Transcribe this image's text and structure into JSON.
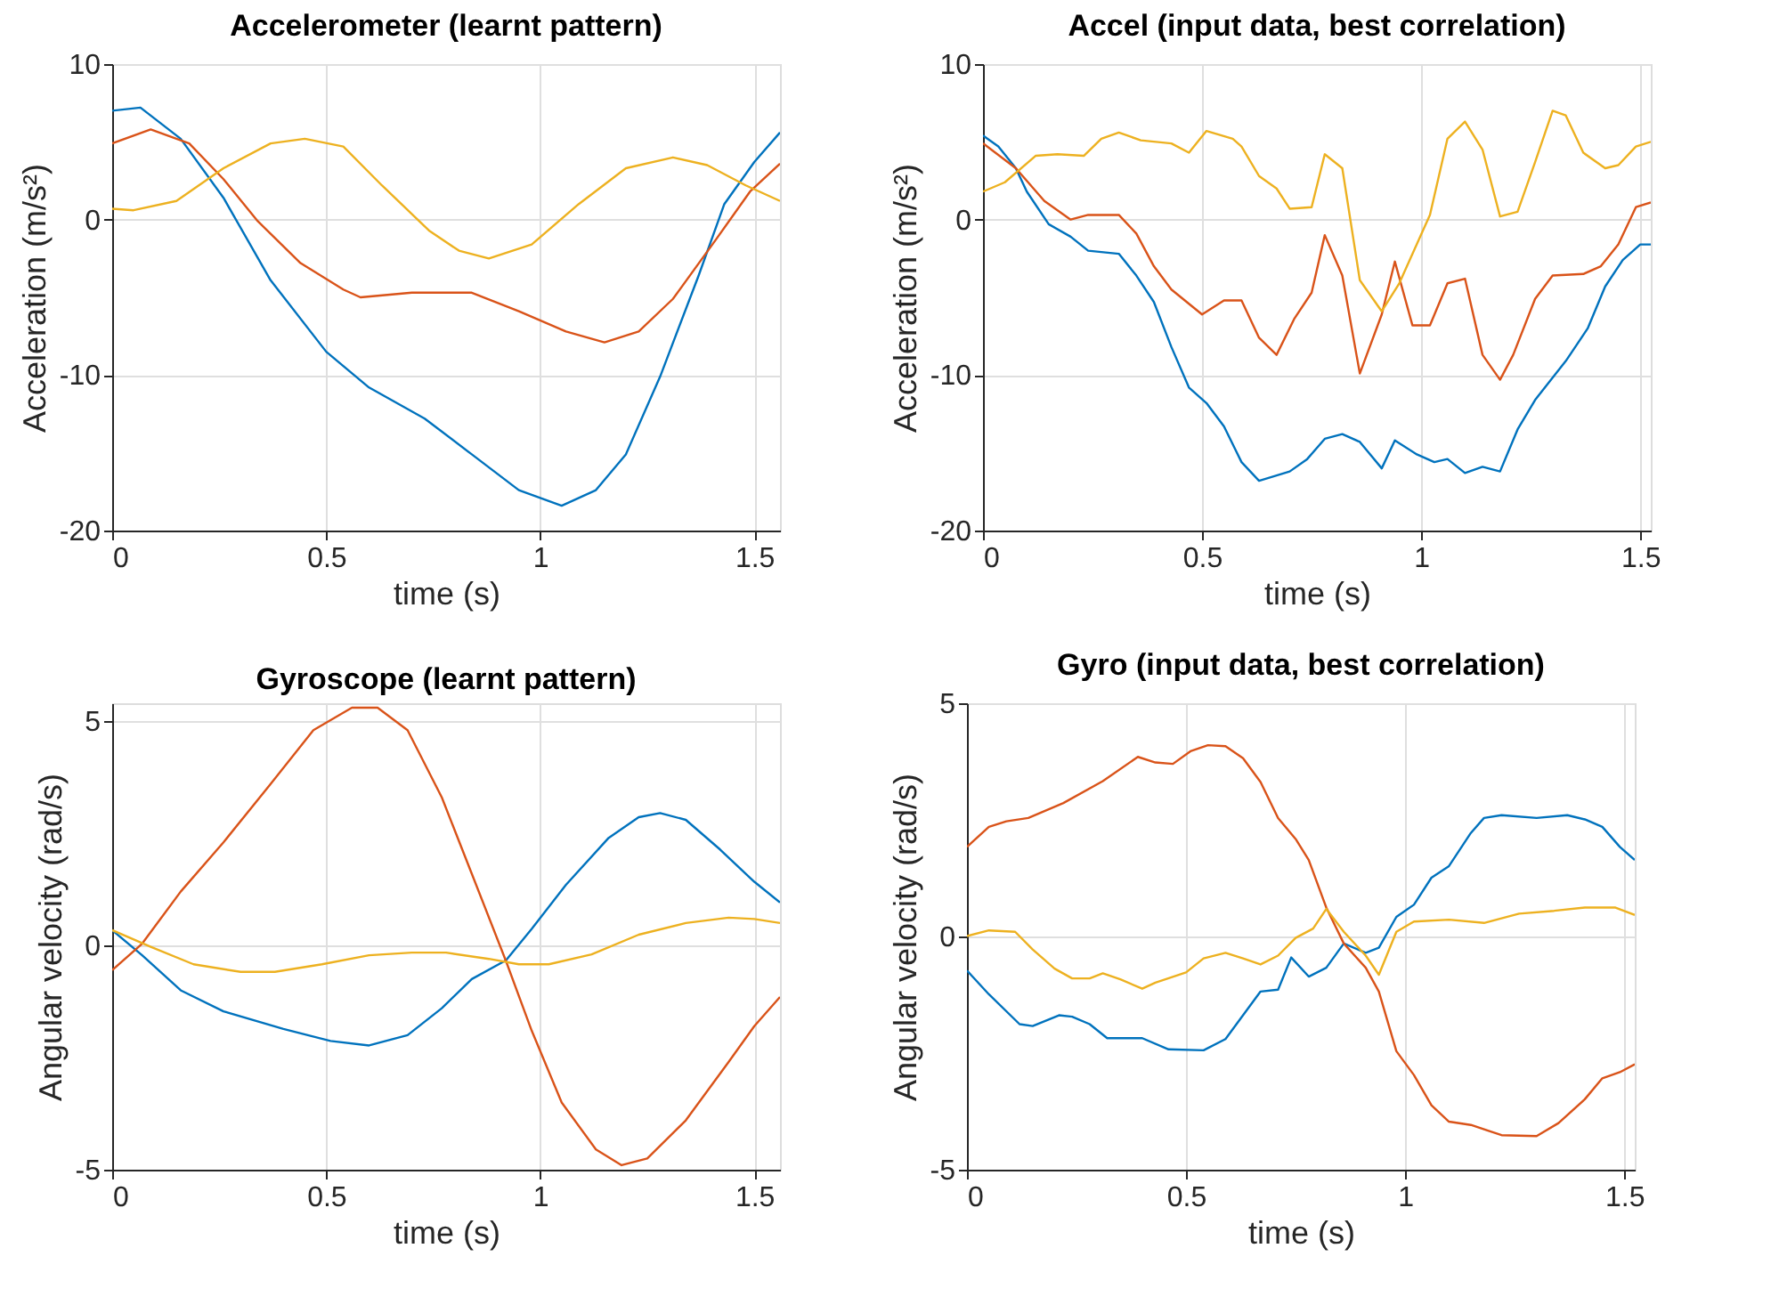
{
  "chart_data": [
    {
      "type": "line",
      "title": "Accelerometer (learnt pattern)",
      "xlabel": "time (s)",
      "ylabel": "Acceleration (m/s²)",
      "xlim": [
        0,
        1.56
      ],
      "ylim": [
        -20,
        10
      ],
      "xticks": [
        0,
        0.5,
        1,
        1.5
      ],
      "yticks": [
        -20,
        -10,
        0,
        10
      ],
      "grid": true,
      "line_style": "solid",
      "marker": "none",
      "series": [
        {
          "color": "#0072bd",
          "x": [
            0,
            0.066,
            0.16,
            0.26,
            0.37,
            0.5,
            0.6,
            0.73,
            0.84,
            0.95,
            1.05,
            1.13,
            1.2,
            1.28,
            1.37,
            1.43,
            1.5,
            1.56
          ],
          "values": [
            7.0,
            7.2,
            5.2,
            1.4,
            -3.9,
            -8.5,
            -10.8,
            -12.8,
            -15.1,
            -17.4,
            -18.4,
            -17.4,
            -15.1,
            -10.1,
            -3.6,
            1.0,
            3.7,
            5.6
          ]
        },
        {
          "color": "#d95319",
          "x": [
            0,
            0.09,
            0.18,
            0.26,
            0.34,
            0.44,
            0.54,
            0.58,
            0.7,
            0.84,
            0.95,
            1.06,
            1.15,
            1.23,
            1.31,
            1.41,
            1.49,
            1.56
          ],
          "values": [
            4.9,
            5.8,
            4.9,
            2.6,
            -0.1,
            -2.8,
            -4.5,
            -5.0,
            -4.7,
            -4.7,
            -5.9,
            -7.2,
            -7.9,
            -7.2,
            -5.1,
            -1.3,
            1.8,
            3.6
          ]
        },
        {
          "color": "#edb120",
          "x": [
            0,
            0.05,
            0.15,
            0.26,
            0.37,
            0.45,
            0.54,
            0.63,
            0.74,
            0.81,
            0.88,
            0.98,
            1.09,
            1.2,
            1.31,
            1.39,
            1.48,
            1.56
          ],
          "values": [
            0.7,
            0.6,
            1.2,
            3.3,
            4.9,
            5.2,
            4.7,
            2.2,
            -0.7,
            -2.0,
            -2.5,
            -1.6,
            1.0,
            3.3,
            4.0,
            3.5,
            2.2,
            1.2
          ]
        }
      ]
    },
    {
      "type": "line",
      "title": "Accel (input data, best correlation)",
      "xlabel": "time (s)",
      "ylabel": "Acceleration (m/s²)",
      "xlim": [
        0,
        1.524
      ],
      "ylim": [
        -20,
        10
      ],
      "xticks": [
        0,
        0.5,
        1,
        1.5
      ],
      "yticks": [
        -20,
        -10,
        0,
        10
      ],
      "grid": true,
      "line_style": "solid",
      "marker": "none",
      "series": [
        {
          "color": "#0072bd",
          "x": [
            0,
            0.035,
            0.075,
            0.1,
            0.15,
            0.2,
            0.24,
            0.31,
            0.35,
            0.39,
            0.43,
            0.47,
            0.51,
            0.55,
            0.59,
            0.63,
            0.7,
            0.74,
            0.78,
            0.82,
            0.86,
            0.91,
            0.94,
            0.99,
            1.03,
            1.06,
            1.1,
            1.14,
            1.18,
            1.22,
            1.26,
            1.33,
            1.38,
            1.42,
            1.46,
            1.5,
            1.524
          ],
          "values": [
            5.4,
            4.7,
            3.3,
            1.8,
            -0.3,
            -1.1,
            -2.0,
            -2.2,
            -3.6,
            -5.3,
            -8.2,
            -10.8,
            -11.8,
            -13.3,
            -15.6,
            -16.8,
            -16.2,
            -15.4,
            -14.1,
            -13.8,
            -14.3,
            -16.0,
            -14.2,
            -15.1,
            -15.6,
            -15.4,
            -16.3,
            -15.9,
            -16.2,
            -13.5,
            -11.6,
            -9.1,
            -7.0,
            -4.3,
            -2.6,
            -1.6,
            -1.6
          ]
        },
        {
          "color": "#d95319",
          "x": [
            0,
            0.075,
            0.14,
            0.2,
            0.24,
            0.31,
            0.35,
            0.39,
            0.43,
            0.5,
            0.55,
            0.59,
            0.63,
            0.67,
            0.71,
            0.75,
            0.78,
            0.82,
            0.86,
            0.91,
            0.94,
            0.98,
            1.02,
            1.06,
            1.1,
            1.14,
            1.18,
            1.21,
            1.26,
            1.3,
            1.37,
            1.41,
            1.45,
            1.49,
            1.524
          ],
          "values": [
            4.9,
            3.3,
            1.2,
            0.0,
            0.3,
            0.3,
            -0.9,
            -3.0,
            -4.5,
            -6.1,
            -5.2,
            -5.2,
            -7.6,
            -8.7,
            -6.4,
            -4.7,
            -1.0,
            -3.6,
            -9.9,
            -6.1,
            -2.7,
            -6.8,
            -6.8,
            -4.1,
            -3.8,
            -8.7,
            -10.3,
            -8.7,
            -5.1,
            -3.6,
            -3.5,
            -3.0,
            -1.6,
            0.8,
            1.1
          ]
        },
        {
          "color": "#edb120",
          "x": [
            0,
            0.05,
            0.12,
            0.17,
            0.23,
            0.27,
            0.31,
            0.36,
            0.43,
            0.47,
            0.51,
            0.57,
            0.59,
            0.63,
            0.67,
            0.7,
            0.75,
            0.78,
            0.82,
            0.86,
            0.91,
            0.95,
            1.02,
            1.06,
            1.1,
            1.14,
            1.18,
            1.22,
            1.26,
            1.3,
            1.33,
            1.37,
            1.42,
            1.45,
            1.49,
            1.524
          ],
          "values": [
            1.8,
            2.4,
            4.1,
            4.2,
            4.1,
            5.2,
            5.6,
            5.1,
            4.9,
            4.3,
            5.7,
            5.2,
            4.7,
            2.8,
            2.0,
            0.7,
            0.8,
            4.2,
            3.3,
            -3.9,
            -5.9,
            -4.1,
            0.3,
            5.2,
            6.3,
            4.5,
            0.2,
            0.5,
            3.7,
            7.0,
            6.7,
            4.3,
            3.3,
            3.5,
            4.7,
            5.0
          ]
        }
      ]
    },
    {
      "type": "line",
      "title": "Gyroscope (learnt pattern)",
      "xlabel": "time (s)",
      "ylabel": "Angular velocity (rad/s)",
      "xlim": [
        0,
        1.56
      ],
      "ylim": [
        -5,
        5.4
      ],
      "xticks": [
        0,
        0.5,
        1,
        1.5
      ],
      "yticks": [
        -5,
        0,
        5
      ],
      "grid": true,
      "line_style": "solid",
      "marker": "none",
      "series": [
        {
          "color": "#0072bd",
          "x": [
            0,
            0.07,
            0.16,
            0.26,
            0.4,
            0.51,
            0.6,
            0.69,
            0.77,
            0.84,
            0.92,
            0.98,
            1.06,
            1.16,
            1.23,
            1.28,
            1.34,
            1.42,
            1.5,
            1.56
          ],
          "values": [
            0.34,
            -0.22,
            -1.0,
            -1.47,
            -1.86,
            -2.13,
            -2.23,
            -2.0,
            -1.4,
            -0.75,
            -0.33,
            0.37,
            1.35,
            2.4,
            2.86,
            2.95,
            2.8,
            2.14,
            1.42,
            0.96
          ]
        },
        {
          "color": "#d95319",
          "x": [
            0,
            0.07,
            0.16,
            0.26,
            0.37,
            0.47,
            0.56,
            0.62,
            0.69,
            0.77,
            0.84,
            0.92,
            0.98,
            1.05,
            1.13,
            1.19,
            1.25,
            1.34,
            1.44,
            1.5,
            1.56
          ],
          "values": [
            -0.55,
            0.04,
            1.2,
            2.3,
            3.6,
            4.8,
            5.3,
            5.3,
            4.8,
            3.3,
            1.6,
            -0.35,
            -1.9,
            -3.5,
            -4.55,
            -4.9,
            -4.75,
            -3.9,
            -2.6,
            -1.8,
            -1.15
          ]
        },
        {
          "color": "#edb120",
          "x": [
            0,
            0.09,
            0.19,
            0.3,
            0.38,
            0.49,
            0.6,
            0.7,
            0.78,
            0.88,
            0.95,
            1.02,
            1.12,
            1.23,
            1.34,
            1.44,
            1.5,
            1.56
          ],
          "values": [
            0.34,
            -0.03,
            -0.42,
            -0.59,
            -0.59,
            -0.42,
            -0.22,
            -0.16,
            -0.16,
            -0.3,
            -0.42,
            -0.42,
            -0.2,
            0.24,
            0.5,
            0.62,
            0.59,
            0.5
          ]
        }
      ]
    },
    {
      "type": "line",
      "title": "Gyro (input data, best correlation)",
      "xlabel": "time (s)",
      "ylabel": "Angular velocity (rad/s)",
      "xlim": [
        0,
        1.524
      ],
      "ylim": [
        -5,
        5
      ],
      "xticks": [
        0,
        0.5,
        1,
        1.5
      ],
      "yticks": [
        -5,
        0,
        5
      ],
      "grid": true,
      "line_style": "solid",
      "marker": "none",
      "series": [
        {
          "color": "#0072bd",
          "x": [
            0,
            0.05,
            0.12,
            0.15,
            0.21,
            0.24,
            0.28,
            0.32,
            0.4,
            0.46,
            0.54,
            0.59,
            0.63,
            0.67,
            0.71,
            0.74,
            0.78,
            0.82,
            0.86,
            0.91,
            0.94,
            0.98,
            1.02,
            1.06,
            1.1,
            1.15,
            1.18,
            1.22,
            1.3,
            1.37,
            1.41,
            1.45,
            1.49,
            1.524
          ],
          "values": [
            -0.73,
            -1.24,
            -1.88,
            -1.92,
            -1.69,
            -1.72,
            -1.88,
            -2.18,
            -2.18,
            -2.42,
            -2.44,
            -2.2,
            -1.69,
            -1.18,
            -1.14,
            -0.45,
            -0.86,
            -0.67,
            -0.15,
            -0.35,
            -0.24,
            0.42,
            0.68,
            1.26,
            1.51,
            2.22,
            2.54,
            2.6,
            2.54,
            2.6,
            2.51,
            2.35,
            1.92,
            1.64
          ]
        },
        {
          "color": "#d95319",
          "x": [
            0,
            0.05,
            0.09,
            0.14,
            0.22,
            0.31,
            0.39,
            0.43,
            0.47,
            0.51,
            0.55,
            0.59,
            0.63,
            0.67,
            0.71,
            0.75,
            0.78,
            0.82,
            0.86,
            0.91,
            0.94,
            0.98,
            1.02,
            1.06,
            1.1,
            1.15,
            1.22,
            1.3,
            1.35,
            1.41,
            1.45,
            1.49,
            1.524
          ],
          "values": [
            1.92,
            2.35,
            2.47,
            2.54,
            2.86,
            3.33,
            3.85,
            3.73,
            3.7,
            3.97,
            4.1,
            4.08,
            3.82,
            3.31,
            2.54,
            2.09,
            1.64,
            0.62,
            -0.15,
            -0.67,
            -1.18,
            -2.46,
            -2.97,
            -3.62,
            -3.97,
            -4.04,
            -4.26,
            -4.28,
            -4.0,
            -3.49,
            -3.04,
            -2.91,
            -2.74
          ]
        },
        {
          "color": "#edb120",
          "x": [
            0,
            0.05,
            0.11,
            0.15,
            0.2,
            0.24,
            0.28,
            0.31,
            0.35,
            0.4,
            0.43,
            0.5,
            0.54,
            0.59,
            0.63,
            0.67,
            0.71,
            0.75,
            0.79,
            0.82,
            0.86,
            0.91,
            0.94,
            0.98,
            1.02,
            1.1,
            1.18,
            1.26,
            1.34,
            1.41,
            1.48,
            1.524
          ],
          "values": [
            0.01,
            0.13,
            0.1,
            -0.28,
            -0.69,
            -0.9,
            -0.9,
            -0.79,
            -0.92,
            -1.12,
            -0.99,
            -0.77,
            -0.47,
            -0.35,
            -0.47,
            -0.6,
            -0.41,
            -0.03,
            0.17,
            0.59,
            0.1,
            -0.41,
            -0.82,
            0.1,
            0.32,
            0.36,
            0.29,
            0.49,
            0.55,
            0.62,
            0.62,
            0.46
          ]
        }
      ]
    }
  ]
}
